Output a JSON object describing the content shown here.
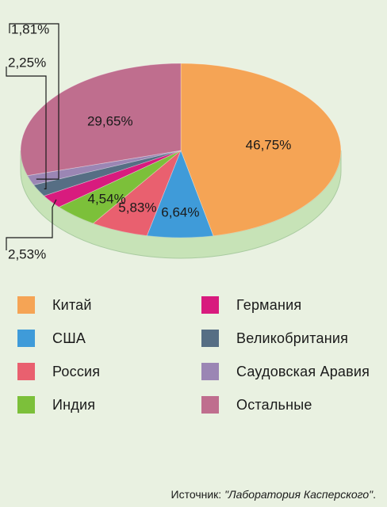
{
  "chart_data": {
    "type": "pie",
    "categories": [
      "Китай",
      "США",
      "Россия",
      "Индия",
      "Германия",
      "Великобритания",
      "Саудовская Аравия",
      "Остальные"
    ],
    "values": [
      46.75,
      6.64,
      5.83,
      4.54,
      2.53,
      2.25,
      1.81,
      29.65
    ],
    "data_labels": [
      "46,75%",
      "6,64%",
      "5,83%",
      "4,54%",
      "2,53%",
      "2,25%",
      "1,81%",
      "29,65%"
    ],
    "colors": [
      "#f5a455",
      "#3f9bd9",
      "#e9606f",
      "#7cc03a",
      "#d81b7e",
      "#566e84",
      "#9b86b4",
      "#bf6e8e"
    ],
    "legend_placement": "bottom"
  },
  "source": {
    "prefix": "Источник: ",
    "name": "\"Лаборатория Касперского\"",
    "suffix": "."
  }
}
